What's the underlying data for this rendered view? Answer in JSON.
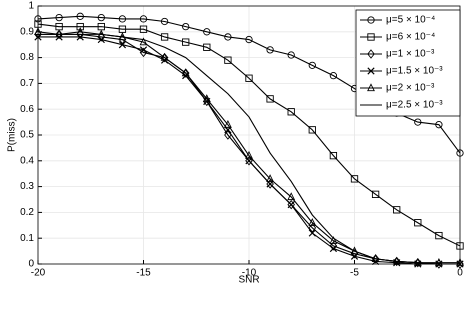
{
  "chart_data": {
    "type": "line",
    "x": [
      -20,
      -19,
      -18,
      -17,
      -16,
      -15,
      -14,
      -13,
      -12,
      -11,
      -10,
      -9,
      -8,
      -7,
      -6,
      -5,
      -4,
      -3,
      -2,
      -1,
      0
    ],
    "xlabel": "SNR",
    "ylabel": "P(miss)",
    "xlim": [
      -20,
      0
    ],
    "xticks": [
      -20,
      -15,
      -10,
      -5,
      0
    ],
    "ylim": [
      0,
      1
    ],
    "yticks": [
      0,
      0.1,
      0.2,
      0.3,
      0.4,
      0.5,
      0.6,
      0.7,
      0.8,
      0.9,
      1
    ],
    "grid": true,
    "legend": "upper right",
    "series": [
      {
        "name": "μ=5 × 10⁻⁴",
        "color": "#000000",
        "marker": "circle",
        "values": [
          0.95,
          0.955,
          0.96,
          0.955,
          0.95,
          0.95,
          0.94,
          0.92,
          0.9,
          0.88,
          0.87,
          0.83,
          0.81,
          0.77,
          0.73,
          0.68,
          0.63,
          0.585,
          0.55,
          0.54,
          0.43
        ]
      },
      {
        "name": "μ=6 × 10⁻⁴",
        "color": "#000000",
        "marker": "square",
        "values": [
          0.93,
          0.92,
          0.92,
          0.92,
          0.91,
          0.91,
          0.88,
          0.86,
          0.84,
          0.79,
          0.72,
          0.64,
          0.59,
          0.52,
          0.42,
          0.33,
          0.27,
          0.21,
          0.16,
          0.11,
          0.07
        ]
      },
      {
        "name": "μ=1 × 10⁻³",
        "color": "#000000",
        "marker": "diamond",
        "values": [
          0.89,
          0.89,
          0.89,
          0.88,
          0.87,
          0.82,
          0.8,
          0.74,
          0.63,
          0.5,
          0.4,
          0.31,
          0.23,
          0.14,
          0.07,
          0.04,
          0.02,
          0.01,
          0.005,
          0,
          0
        ]
      },
      {
        "name": "μ=1.5 × 10⁻³",
        "color": "#000000",
        "marker": "x",
        "values": [
          0.88,
          0.88,
          0.88,
          0.87,
          0.85,
          0.83,
          0.79,
          0.73,
          0.63,
          0.52,
          0.4,
          0.31,
          0.23,
          0.12,
          0.06,
          0.03,
          0.01,
          0.005,
          0,
          0,
          0
        ]
      },
      {
        "name": "μ=2 × 10⁻³",
        "color": "#000000",
        "marker": "triangle",
        "values": [
          0.9,
          0.89,
          0.9,
          0.89,
          0.88,
          0.86,
          0.8,
          0.74,
          0.64,
          0.54,
          0.42,
          0.33,
          0.26,
          0.16,
          0.09,
          0.05,
          0.02,
          0.01,
          0.005,
          0.005,
          0.005
        ]
      },
      {
        "name": "μ=2.5 × 10⁻³",
        "color": "#000000",
        "marker": "none",
        "values": [
          0.89,
          0.89,
          0.89,
          0.89,
          0.88,
          0.87,
          0.84,
          0.8,
          0.73,
          0.66,
          0.57,
          0.43,
          0.32,
          0.19,
          0.1,
          0.05,
          0.02,
          0.01,
          0.005,
          0,
          0
        ]
      }
    ]
  }
}
